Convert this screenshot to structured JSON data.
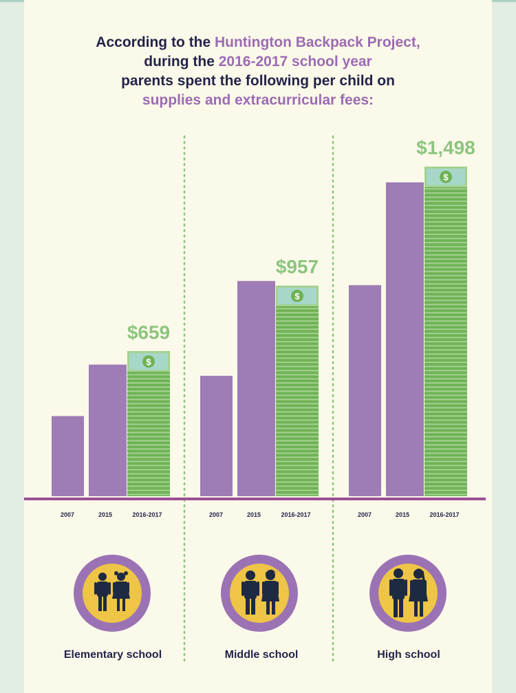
{
  "title": {
    "l1a": "According to the ",
    "l1b": "Huntington Backpack Project,",
    "l2a": "during the ",
    "l2b": "2016-2017 school year",
    "l3": "parents spent the following per child on",
    "l4": "supplies and extracurricular fees:"
  },
  "colors": {
    "purple_bar": "#9e7cb5",
    "green_bar": "#6fb256",
    "green_light": "#a4d291",
    "money_band": "#a7d7c9",
    "axis": "#9b4e95",
    "value_label": "#8cc57f",
    "divider": "#8cc57f",
    "icon_ring": "#9b73b4",
    "icon_fill": "#eec546",
    "icon_figure": "#1d2a42"
  },
  "chart_data": {
    "type": "bar",
    "categories": [
      "Elementary school",
      "Middle school",
      "High school"
    ],
    "x": [
      "2007",
      "2015",
      "2016-2017"
    ],
    "series": [
      {
        "name": "2007",
        "values": [
          364,
          547,
          959
        ]
      },
      {
        "name": "2015",
        "values": [
          598,
          978,
          1426
        ]
      },
      {
        "name": "2016-2017",
        "values": [
          659,
          957,
          1498
        ]
      }
    ],
    "value_labels": [
      "$659",
      "$957",
      "$1,498"
    ],
    "ylim": [
      0,
      1600
    ],
    "grid": false,
    "legend": "none"
  }
}
